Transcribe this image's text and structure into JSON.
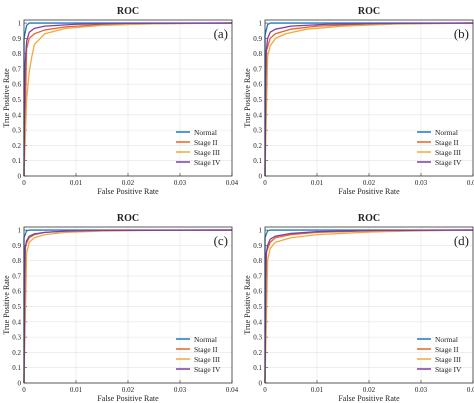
{
  "figure": {
    "legend_position": "bottom-right",
    "grid": true
  },
  "chart_data": [
    {
      "type": "line",
      "panel_label": "(a)",
      "title": "ROC",
      "xlabel": "False Positive Rate",
      "ylabel": "True Positive Rate",
      "xlim": [
        0,
        0.04
      ],
      "ylim": [
        0,
        1.02
      ],
      "x_ticks": [
        "0",
        "0.01",
        "0.02",
        "0.03",
        "0.04"
      ],
      "y_ticks": [
        "0",
        "0.1",
        "0.2",
        "0.3",
        "0.4",
        "0.5",
        "0.6",
        "0.7",
        "0.8",
        "0.9",
        "1"
      ],
      "series": [
        {
          "name": "Normal",
          "color": "#1f77c4",
          "x": [
            0,
            0,
            0.0005,
            0.001,
            0.04
          ],
          "y": [
            0,
            0.9,
            0.985,
            1.0,
            1.0
          ]
        },
        {
          "name": "Stage II",
          "color": "#e8622a",
          "x": [
            0,
            0.0005,
            0.001,
            0.002,
            0.004,
            0.008,
            0.015,
            0.025,
            0.04
          ],
          "y": [
            0,
            0.83,
            0.9,
            0.93,
            0.955,
            0.975,
            0.99,
            0.997,
            1.0
          ]
        },
        {
          "name": "Stage III",
          "color": "#f2a93b",
          "x": [
            0,
            0.0005,
            0.001,
            0.0015,
            0.002,
            0.004,
            0.008,
            0.015,
            0.025,
            0.04
          ],
          "y": [
            0,
            0.5,
            0.68,
            0.78,
            0.86,
            0.93,
            0.965,
            0.985,
            0.995,
            1.0
          ]
        },
        {
          "name": "Stage IV",
          "color": "#7b3fa8",
          "x": [
            0,
            0.0002,
            0.0005,
            0.001,
            0.002,
            0.004,
            0.01,
            0.02,
            0.04
          ],
          "y": [
            0,
            0.72,
            0.88,
            0.94,
            0.965,
            0.98,
            0.992,
            0.998,
            1.0
          ]
        }
      ]
    },
    {
      "type": "line",
      "panel_label": "(b)",
      "title": "ROC",
      "xlabel": "False Positive Rate",
      "ylabel": "True Positive Rate",
      "xlim": [
        0,
        0.04
      ],
      "ylim": [
        0,
        1.02
      ],
      "x_ticks": [
        "0",
        "0.01",
        "0.02",
        "0.03",
        "0.04"
      ],
      "y_ticks": [
        "0",
        "0.1",
        "0.2",
        "0.3",
        "0.4",
        "0.5",
        "0.6",
        "0.7",
        "0.8",
        "0.9",
        "1"
      ],
      "series": [
        {
          "name": "Normal",
          "color": "#1f77c4",
          "x": [
            0,
            0,
            0.0005,
            0.001,
            0.04
          ],
          "y": [
            0,
            0.92,
            0.99,
            1.0,
            1.0
          ]
        },
        {
          "name": "Stage II",
          "color": "#e8622a",
          "x": [
            0,
            0.0003,
            0.001,
            0.002,
            0.005,
            0.01,
            0.02,
            0.03,
            0.04
          ],
          "y": [
            0,
            0.82,
            0.9,
            0.93,
            0.96,
            0.98,
            0.993,
            0.998,
            1.0
          ]
        },
        {
          "name": "Stage III",
          "color": "#f2a93b",
          "x": [
            0,
            0.0005,
            0.001,
            0.002,
            0.004,
            0.008,
            0.015,
            0.025,
            0.04
          ],
          "y": [
            0,
            0.78,
            0.85,
            0.9,
            0.93,
            0.96,
            0.98,
            0.993,
            1.0
          ]
        },
        {
          "name": "Stage IV",
          "color": "#7b3fa8",
          "x": [
            0,
            0.0002,
            0.0005,
            0.001,
            0.002,
            0.005,
            0.012,
            0.025,
            0.04
          ],
          "y": [
            0,
            0.8,
            0.9,
            0.94,
            0.96,
            0.98,
            0.992,
            0.998,
            1.0
          ]
        }
      ]
    },
    {
      "type": "line",
      "panel_label": "(c)",
      "title": "ROC",
      "xlabel": "False Positive Rate",
      "ylabel": "True Positive Rate",
      "xlim": [
        0,
        0.04
      ],
      "ylim": [
        0,
        1.02
      ],
      "x_ticks": [
        "0",
        "0.01",
        "0.02",
        "0.03",
        "0.04"
      ],
      "y_ticks": [
        "0",
        "0.1",
        "0.2",
        "0.3",
        "0.4",
        "0.5",
        "0.6",
        "0.7",
        "0.8",
        "0.9",
        "1"
      ],
      "series": [
        {
          "name": "Normal",
          "color": "#1f77c4",
          "x": [
            0,
            0,
            0.0005,
            0.001,
            0.04
          ],
          "y": [
            0,
            0.95,
            0.995,
            1.0,
            1.0
          ]
        },
        {
          "name": "Stage II",
          "color": "#e8622a",
          "x": [
            0,
            0.0003,
            0.001,
            0.002,
            0.004,
            0.008,
            0.015,
            0.04
          ],
          "y": [
            0,
            0.9,
            0.95,
            0.97,
            0.985,
            0.993,
            0.998,
            1.0
          ]
        },
        {
          "name": "Stage III",
          "color": "#f2a93b",
          "x": [
            0,
            0.0005,
            0.001,
            0.002,
            0.004,
            0.008,
            0.015,
            0.025,
            0.04
          ],
          "y": [
            0,
            0.85,
            0.92,
            0.95,
            0.97,
            0.985,
            0.993,
            0.998,
            1.0
          ]
        },
        {
          "name": "Stage IV",
          "color": "#7b3fa8",
          "x": [
            0,
            0.0002,
            0.0005,
            0.001,
            0.002,
            0.004,
            0.008,
            0.015,
            0.04
          ],
          "y": [
            0,
            0.88,
            0.93,
            0.96,
            0.975,
            0.985,
            0.993,
            0.998,
            1.0
          ]
        }
      ]
    },
    {
      "type": "line",
      "panel_label": "(d)",
      "title": "ROC",
      "xlabel": "False Positive Rate",
      "ylabel": "True Positive Rate",
      "xlim": [
        0,
        0.04
      ],
      "ylim": [
        0,
        1.02
      ],
      "x_ticks": [
        "0",
        "0.01",
        "0.02",
        "0.03",
        "0.04"
      ],
      "y_ticks": [
        "0",
        "0.1",
        "0.2",
        "0.3",
        "0.4",
        "0.5",
        "0.6",
        "0.7",
        "0.8",
        "0.9",
        "1"
      ],
      "series": [
        {
          "name": "Normal",
          "color": "#1f77c4",
          "x": [
            0,
            0,
            0.0005,
            0.001,
            0.04
          ],
          "y": [
            0,
            0.95,
            0.995,
            1.0,
            1.0
          ]
        },
        {
          "name": "Stage II",
          "color": "#e8622a",
          "x": [
            0,
            0.0003,
            0.001,
            0.002,
            0.005,
            0.01,
            0.02,
            0.03,
            0.04
          ],
          "y": [
            0,
            0.86,
            0.92,
            0.95,
            0.97,
            0.985,
            0.995,
            0.999,
            1.0
          ]
        },
        {
          "name": "Stage III",
          "color": "#f2a93b",
          "x": [
            0,
            0.0005,
            0.001,
            0.002,
            0.005,
            0.01,
            0.02,
            0.03,
            0.04
          ],
          "y": [
            0,
            0.8,
            0.88,
            0.92,
            0.95,
            0.97,
            0.987,
            0.995,
            1.0
          ]
        },
        {
          "name": "Stage IV",
          "color": "#7b3fa8",
          "x": [
            0,
            0.0002,
            0.0005,
            0.001,
            0.002,
            0.005,
            0.01,
            0.02,
            0.04
          ],
          "y": [
            0,
            0.84,
            0.9,
            0.94,
            0.96,
            0.978,
            0.99,
            0.997,
            1.0
          ]
        }
      ]
    }
  ]
}
